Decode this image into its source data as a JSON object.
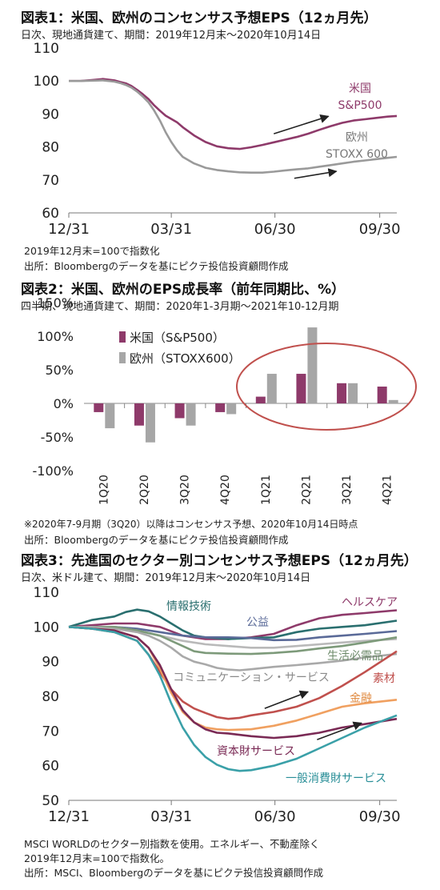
{
  "chart_data": [
    {
      "type": "line",
      "title": "図表1：米国、欧州のコンセンサス予想EPS（12ヵ月先）",
      "subtitle": "日次、現地通貨建て、期間：2019年12月末～2020年10月14日",
      "ylim": [
        60,
        110
      ],
      "yticks": [
        60,
        70,
        80,
        90,
        100,
        110
      ],
      "xticks": [
        "12/31",
        "03/31",
        "06/30",
        "09/30"
      ],
      "xtick_pos": [
        0,
        90,
        181,
        273
      ],
      "xlim": [
        0,
        288
      ],
      "series": [
        {
          "name": "米国 S&P500",
          "label_lines": [
            "米国",
            "S&P500"
          ],
          "color": "#8e3a6a",
          "x": [
            0,
            10,
            20,
            30,
            40,
            45,
            50,
            55,
            60,
            65,
            70,
            75,
            80,
            85,
            90,
            95,
            100,
            110,
            120,
            130,
            140,
            150,
            160,
            170,
            180,
            190,
            200,
            210,
            220,
            230,
            240,
            250,
            260,
            270,
            280,
            288
          ],
          "y": [
            100,
            100,
            100.3,
            100.6,
            100.2,
            99.7,
            99.3,
            98.5,
            97.3,
            96,
            94.5,
            92.6,
            91,
            89.5,
            88.5,
            87.5,
            86,
            83.5,
            81.5,
            80.2,
            79.6,
            79.4,
            79.9,
            80.6,
            81.4,
            82.2,
            83,
            84,
            85.2,
            86.3,
            87.3,
            88,
            88.4,
            88.8,
            89.2,
            89.4
          ]
        },
        {
          "name": "欧州 STOXX 600",
          "label_lines": [
            "欧州",
            "STOXX 600"
          ],
          "color": "#9a9a9a",
          "x": [
            0,
            10,
            20,
            30,
            40,
            45,
            50,
            55,
            60,
            65,
            70,
            75,
            80,
            85,
            90,
            95,
            100,
            110,
            120,
            130,
            140,
            150,
            160,
            170,
            180,
            190,
            200,
            210,
            220,
            230,
            240,
            250,
            260,
            270,
            280,
            288
          ],
          "y": [
            100,
            100,
            100.1,
            100.2,
            99.8,
            99.4,
            98.8,
            98,
            96.8,
            95.3,
            93.5,
            91,
            88,
            84.5,
            81.5,
            79,
            77,
            75,
            73.7,
            73,
            72.6,
            72.3,
            72.2,
            72.2,
            72.5,
            72.9,
            73.2,
            73.5,
            74,
            74.5,
            75,
            75.5,
            75.9,
            76.3,
            76.7,
            77
          ]
        }
      ],
      "arrows": [
        {
          "x1": 180,
          "y1": 84,
          "x2": 228,
          "y2": 89.3
        },
        {
          "x1": 198,
          "y1": 70.5,
          "x2": 235,
          "y2": 72.6
        }
      ],
      "notes": [
        "2019年12月末=100で指数化",
        "出所：Bloombergのデータを基にピクテ投信投資顧問作成"
      ]
    },
    {
      "type": "bar",
      "title": "図表2：米国、欧州のEPS成長率（前年同期比、%）",
      "subtitle": "四半期、現地通貨建て、期間：2020年1-3月期～2021年10-12月期",
      "categories": [
        "1Q20",
        "2Q20",
        "3Q20",
        "4Q20",
        "1Q21",
        "2Q21",
        "3Q21",
        "4Q21"
      ],
      "ylim": [
        -100,
        150
      ],
      "yticks": [
        -100,
        -50,
        0,
        50,
        100,
        150
      ],
      "ytick_labels": [
        "-100%",
        "-50%",
        "0%",
        "50%",
        "100%",
        "150%"
      ],
      "series": [
        {
          "name": "米国（S&P500）",
          "color": "#8e3a6a",
          "values": [
            -13,
            -33,
            -22,
            -13,
            10,
            44,
            30,
            25
          ]
        },
        {
          "name": "欧州（STOXX600）",
          "color": "#a6a6a6",
          "values": [
            -37,
            -58,
            -33,
            -16,
            44,
            113,
            30,
            5
          ]
        }
      ],
      "notes": [
        "※2020年7-9月期（3Q20）以降はコンセンサス予想、2020年10月14日時点",
        "出所：Bloombergのデータを基にピクテ投信投資顧問作成"
      ]
    },
    {
      "type": "line",
      "title": "図表3：先進国のセクター別コンセンサス予想EPS（12ヵ月先）",
      "subtitle": "日次、米ドル建て、期間：2019年12月末～2020年10月14日",
      "ylim": [
        50,
        110
      ],
      "yticks": [
        50,
        60,
        70,
        80,
        90,
        100,
        110
      ],
      "xticks": [
        "12/31",
        "03/31",
        "06/30",
        "09/30"
      ],
      "xtick_pos": [
        0,
        90,
        181,
        273
      ],
      "xlim": [
        0,
        288
      ],
      "series": [
        {
          "name": "ヘルスケア",
          "color": "#8e3a6a",
          "x": [
            0,
            20,
            40,
            60,
            80,
            100,
            120,
            140,
            160,
            180,
            200,
            220,
            240,
            260,
            288
          ],
          "y": [
            100,
            100.5,
            101,
            101,
            100,
            97.5,
            96.5,
            96.5,
            97,
            98,
            100.5,
            102.5,
            103.5,
            104,
            104.8
          ]
        },
        {
          "name": "情報技術",
          "color": "#2a6f6f",
          "x": [
            0,
            20,
            40,
            50,
            60,
            70,
            80,
            90,
            100,
            110,
            120,
            140,
            160,
            180,
            200,
            220,
            240,
            260,
            288
          ],
          "y": [
            100,
            102,
            103,
            104.3,
            105,
            104.5,
            103,
            101,
            99,
            97.5,
            97,
            96.5,
            96.8,
            97,
            98.5,
            99.5,
            100,
            100.5,
            101.8
          ]
        },
        {
          "name": "公益",
          "color": "#5a6a98",
          "x": [
            0,
            20,
            40,
            60,
            80,
            100,
            120,
            140,
            160,
            180,
            200,
            220,
            240,
            260,
            288
          ],
          "y": [
            100,
            100,
            100,
            99.5,
            98.5,
            97.5,
            97,
            97,
            96.8,
            96.2,
            96.3,
            97,
            97.5,
            98,
            98.8
          ]
        },
        {
          "name": "",
          "color": "#b9b9b9",
          "x": [
            0,
            20,
            40,
            60,
            80,
            100,
            120,
            140,
            160,
            180,
            200,
            220,
            240,
            260,
            288
          ],
          "y": [
            100,
            100,
            100,
            99,
            97.5,
            96,
            95,
            94.5,
            94,
            94,
            94.5,
            95,
            95.5,
            96,
            96.5
          ]
        },
        {
          "name": "生活必需品",
          "color": "#7d9a7a",
          "x": [
            0,
            20,
            40,
            60,
            80,
            90,
            100,
            110,
            120,
            140,
            160,
            180,
            200,
            220,
            240,
            260,
            288
          ],
          "y": [
            100,
            100,
            100,
            99,
            97.5,
            96,
            94.5,
            93,
            92.5,
            92.3,
            92.2,
            92.5,
            93,
            93.8,
            94.5,
            95.5,
            97
          ]
        },
        {
          "name": "コミュニケーション・サービス",
          "color": "#a9a9a9",
          "x": [
            0,
            20,
            40,
            60,
            70,
            80,
            90,
            100,
            110,
            120,
            130,
            140,
            150,
            160,
            180,
            200,
            220,
            240,
            260,
            288
          ],
          "y": [
            100,
            100,
            99.5,
            98.5,
            97.5,
            96,
            94,
            91.5,
            90,
            89.2,
            88.2,
            87.7,
            87.5,
            87.8,
            88.5,
            89,
            89.6,
            90.3,
            91.2,
            92.2
          ]
        },
        {
          "name": "素材",
          "color": "#c0504d",
          "x": [
            0,
            20,
            40,
            60,
            70,
            80,
            90,
            100,
            110,
            120,
            130,
            140,
            150,
            160,
            180,
            200,
            220,
            240,
            260,
            288
          ],
          "y": [
            100,
            99.5,
            98.5,
            96,
            92,
            87,
            82,
            78.5,
            76.5,
            75.2,
            74,
            73.5,
            73.8,
            74.5,
            75.5,
            77,
            79.5,
            83,
            87,
            93
          ]
        },
        {
          "name": "金融",
          "color": "#f0a060",
          "x": [
            0,
            20,
            40,
            60,
            70,
            80,
            90,
            100,
            110,
            120,
            130,
            140,
            160,
            180,
            200,
            220,
            240,
            260,
            288
          ],
          "y": [
            100,
            99.5,
            99,
            97,
            94,
            88,
            81,
            75.5,
            72.5,
            71,
            70.5,
            70.3,
            70.5,
            71.5,
            73,
            75,
            77,
            78,
            79
          ]
        },
        {
          "name": "資本財サービス",
          "color": "#7a2a55",
          "x": [
            0,
            20,
            40,
            60,
            70,
            80,
            90,
            100,
            110,
            120,
            130,
            140,
            160,
            180,
            200,
            220,
            240,
            260,
            288
          ],
          "y": [
            100,
            99.5,
            99,
            97,
            94,
            89,
            82,
            76,
            72.5,
            70.5,
            69.5,
            69.3,
            68.5,
            68,
            68.5,
            69.5,
            71,
            72,
            73.5
          ]
        },
        {
          "name": "一般消費財サービス",
          "color": "#3aa0a8",
          "x": [
            0,
            20,
            40,
            60,
            70,
            80,
            90,
            100,
            110,
            120,
            130,
            140,
            150,
            160,
            180,
            200,
            220,
            240,
            260,
            288
          ],
          "y": [
            100,
            99.5,
            98.5,
            96,
            92,
            86,
            78,
            71,
            66,
            62.5,
            60.3,
            59,
            58.5,
            58.7,
            60,
            62,
            65,
            68,
            71,
            74.5
          ]
        }
      ],
      "arrows": [
        {
          "x1": 172,
          "y1": 76.5,
          "x2": 210,
          "y2": 81.3
        },
        {
          "x1": 218,
          "y1": 67.5,
          "x2": 257,
          "y2": 72.3
        }
      ],
      "notes": [
        "MSCI WORLDのセクター別指数を使用。エネルギー、不動産除く",
        "2019年12月末=100で指数化。",
        "出所：MSCI、Bloombergのデータを基にピクテ投信投資顧問作成"
      ]
    }
  ]
}
